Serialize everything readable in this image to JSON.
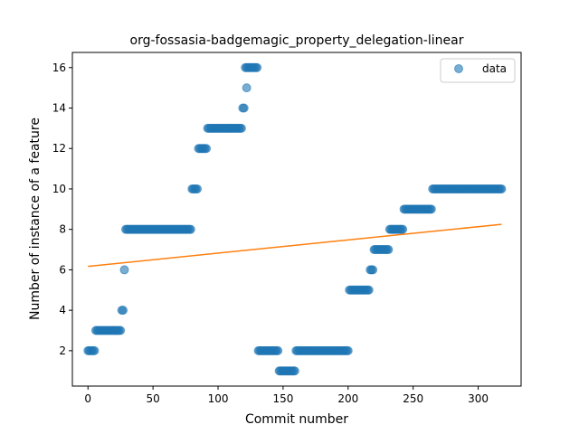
{
  "chart_data": {
    "type": "scatter",
    "title": "org-fossasia-badgemagic_property_delegation-linear",
    "xlabel": "Commit number",
    "ylabel": "Number of instance of a feature",
    "xlim": [
      -12,
      333
    ],
    "ylim": [
      0.25,
      16.75
    ],
    "xticks": [
      0,
      50,
      100,
      150,
      200,
      250,
      300
    ],
    "yticks": [
      2,
      4,
      6,
      8,
      10,
      12,
      14,
      16
    ],
    "grid": false,
    "legend": {
      "position": "top-right",
      "entries": [
        "data"
      ]
    },
    "colors": {
      "data": "#1f77b4",
      "fit": "#ff7f0e"
    },
    "series": [
      {
        "name": "data",
        "style": "markers",
        "segments": [
          {
            "x_start": 0,
            "x_end": 5,
            "y": 2
          },
          {
            "x_start": 6,
            "x_end": 25,
            "y": 3
          },
          {
            "x_start": 26,
            "x_end": 27,
            "y": 4
          },
          {
            "x_start": 28,
            "x_end": 28,
            "y": 6
          },
          {
            "x_start": 29,
            "x_end": 79,
            "y": 8
          },
          {
            "x_start": 80,
            "x_end": 84,
            "y": 10
          },
          {
            "x_start": 85,
            "x_end": 91,
            "y": 12
          },
          {
            "x_start": 92,
            "x_end": 118,
            "y": 13
          },
          {
            "x_start": 119,
            "x_end": 120,
            "y": 14
          },
          {
            "x_start": 122,
            "x_end": 122,
            "y": 15
          },
          {
            "x_start": 121,
            "x_end": 130,
            "y": 16
          },
          {
            "x_start": 131,
            "x_end": 146,
            "y": 2
          },
          {
            "x_start": 147,
            "x_end": 159,
            "y": 1
          },
          {
            "x_start": 160,
            "x_end": 200,
            "y": 2
          },
          {
            "x_start": 201,
            "x_end": 216,
            "y": 5
          },
          {
            "x_start": 217,
            "x_end": 219,
            "y": 6
          },
          {
            "x_start": 220,
            "x_end": 231,
            "y": 7
          },
          {
            "x_start": 232,
            "x_end": 242,
            "y": 8
          },
          {
            "x_start": 243,
            "x_end": 264,
            "y": 9
          },
          {
            "x_start": 265,
            "x_end": 318,
            "y": 10
          }
        ]
      },
      {
        "name": "linear fit",
        "style": "line",
        "x": [
          0,
          318
        ],
        "y": [
          6.17,
          8.25
        ]
      }
    ]
  }
}
